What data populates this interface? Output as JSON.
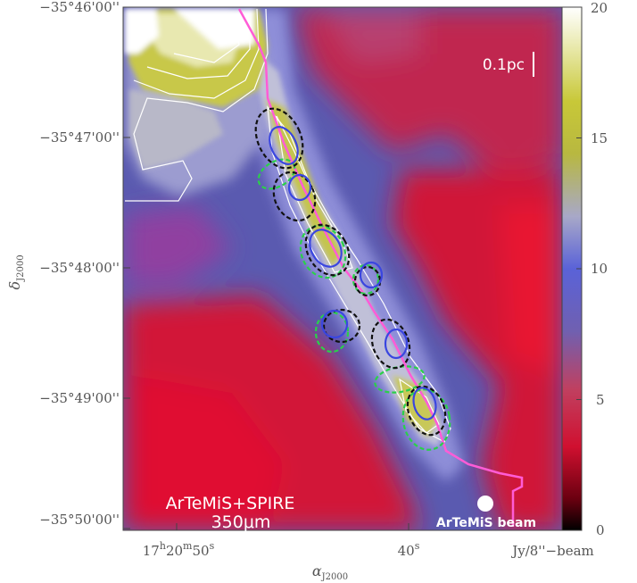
{
  "figure": {
    "dec_ticks": [
      "−35°46'00''",
      "−35°47'00''",
      "−35°48'00''",
      "−35°49'00''",
      "−35°50'00''"
    ],
    "ra_tick_1": {
      "h": "17",
      "m": "20",
      "s": "50"
    },
    "ra_tick_2": {
      "s": "40"
    },
    "x_axis_main": "α",
    "x_axis_sub": "J2000",
    "y_axis_main": "δ",
    "y_axis_sub": "J2000",
    "scale_bar_label": "0.1pc",
    "instrument_label": "ArTeMiS+SPIRE",
    "wavelength_label": "350μm",
    "beam_label": "ArTeMiS beam",
    "colorbar": {
      "ticks": [
        "20",
        "15",
        "10",
        "5",
        "0"
      ],
      "unit_label": "Jy/8''−beam",
      "vmin": 0,
      "vmax": 20
    },
    "colors": {
      "filament_spine": "#ff5cd6",
      "black_ellipses": "#111111",
      "blue_ellipses": "#3a46e0",
      "green_ellipses": "#2ad04a"
    }
  }
}
